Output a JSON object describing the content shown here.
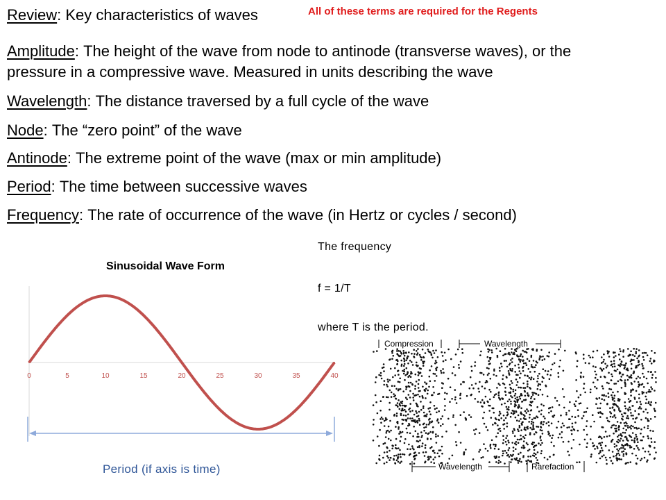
{
  "header": {
    "review_term": "Review",
    "review_text": "Key characteristics of waves",
    "regents_note": "All of these terms are required for the Regents"
  },
  "terms": [
    {
      "term": "Amplitude",
      "definition": "The height of the wave from node to antinode (transverse waves), or the"
    },
    {
      "term": "Wavelength",
      "definition": "The distance traversed by a full cycle of the wave"
    },
    {
      "term": "Node",
      "definition": "The “zero point” of the wave"
    },
    {
      "term": "Antinode",
      "definition": "The extreme point of the wave (max or min amplitude)"
    },
    {
      "term": "Period",
      "definition": "The time between successive waves"
    },
    {
      "term": "Frequency",
      "definition": "The rate of occurrence of the wave (in Hertz or cycles / second)"
    }
  ],
  "amplitude_continuation": "pressure in a compressive wave.  Measured in units describing the wave",
  "frequency_note": {
    "line1": "The frequency",
    "line2": "f = 1/T",
    "line3": "where T is the period."
  },
  "period_label": "Period (if axis is time)",
  "compression_diagram": {
    "labels": [
      "Compression",
      "Wavelength",
      "Wavelength",
      "Rarefaction"
    ]
  },
  "colors": {
    "wave_line": "#c0504d",
    "axis": "#d9d9d9",
    "tick_label": "#c0504d",
    "period_arrow": "#8eaadb",
    "regents_note": "#e01c1c",
    "period_text": "#2e5597"
  },
  "chart_data": {
    "type": "line",
    "title": "Sinusoidal Wave Form",
    "xlabel": "",
    "ylabel": "",
    "x_ticks": [
      0,
      5,
      10,
      15,
      20,
      25,
      30,
      35,
      40
    ],
    "xlim": [
      0,
      40
    ],
    "ylim": [
      -1,
      1
    ],
    "series": [
      {
        "x": [
          0,
          2.5,
          5,
          7.5,
          10,
          12.5,
          15,
          17.5,
          20,
          22.5,
          25,
          27.5,
          30,
          32.5,
          35,
          37.5,
          40
        ],
        "y": [
          0,
          0.38,
          0.71,
          0.92,
          1,
          0.92,
          0.71,
          0.38,
          0,
          -0.38,
          -0.71,
          -0.92,
          -1,
          -0.92,
          -0.71,
          -0.38,
          0
        ]
      }
    ],
    "grid": false,
    "legend": "none"
  }
}
